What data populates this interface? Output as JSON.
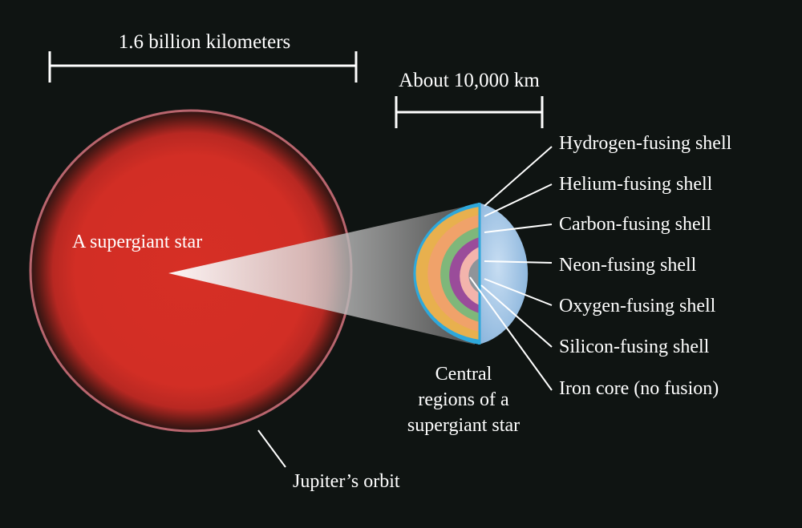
{
  "scale_bars": {
    "star_scale": "1.6 billion kilometers",
    "core_scale": "About 10,000 km"
  },
  "star": {
    "label": "A supergiant star",
    "orbit_label": "Jupiter’s orbit"
  },
  "core": {
    "caption_lines": [
      "Central",
      "regions of a",
      "supergiant star"
    ],
    "layers": [
      "Hydrogen-fusing shell",
      "Helium-fusing shell",
      "Carbon-fusing shell",
      "Neon-fusing shell",
      "Oxygen-fusing shell",
      "Silicon-fusing shell",
      "Iron core (no fusion)"
    ]
  },
  "colors": {
    "background": "#0f1412",
    "star_red": "#d42f26",
    "orbit": "#b9656e",
    "hydrogen": "#2ea8db",
    "helium": "#e8b04e",
    "carbon": "#f0a26a",
    "neon": "#7fb77a",
    "oxygen": "#9a4c9a",
    "silicon": "#f3b4ac",
    "iron": "#8f9499",
    "cutaway": "#a9cbe8"
  }
}
